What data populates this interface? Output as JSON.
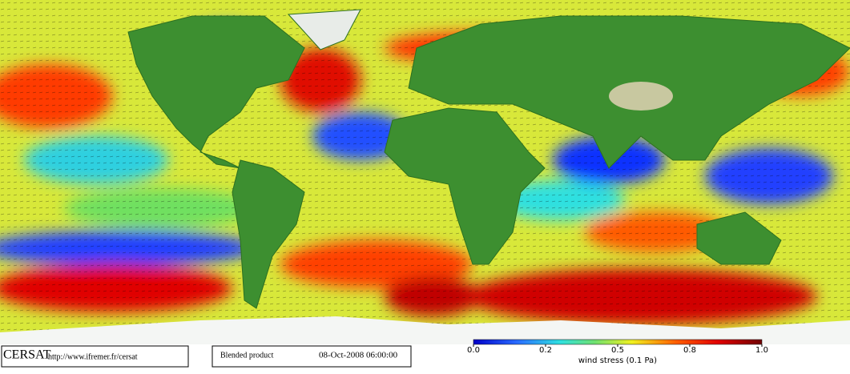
{
  "logo": "CERSAT",
  "url": "http://www.ifremer.fr/cersat",
  "product": "Blended product",
  "timestamp": "08-Oct-2008 06:00:00",
  "colorbar": {
    "label": "wind stress (0.1 Pa)",
    "ticks": [
      {
        "value": 0,
        "label": "0.0"
      },
      0.2,
      0.5,
      0.8,
      {
        "value": 1,
        "label": "1.0"
      }
    ]
  }
}
